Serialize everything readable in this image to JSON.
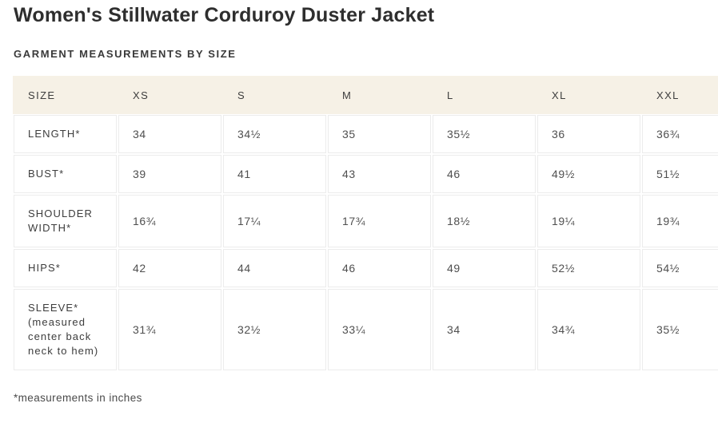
{
  "page": {
    "title": "Women's Stillwater Corduroy Duster Jacket",
    "section_heading": "GARMENT MEASUREMENTS BY SIZE",
    "footnote": "*measurements in inches"
  },
  "table": {
    "columns": [
      "SIZE",
      "XS",
      "S",
      "M",
      "L",
      "XL",
      "XXL"
    ],
    "rows": [
      {
        "label": "LENGTH*",
        "values": [
          "34",
          "34½",
          "35",
          "35½",
          "36",
          "36¾"
        ]
      },
      {
        "label": "BUST*",
        "values": [
          "39",
          "41",
          "43",
          "46",
          "49½",
          "51½"
        ]
      },
      {
        "label": "SHOULDER WIDTH*",
        "values": [
          "16¾",
          "17¼",
          "17¾",
          "18½",
          "19¼",
          "19¾"
        ]
      },
      {
        "label": "HIPS*",
        "values": [
          "42",
          "44",
          "46",
          "49",
          "52½",
          "54½"
        ]
      },
      {
        "label": "SLEEVE* (measured center back neck to hem)",
        "values": [
          "31¾",
          "32½",
          "33¼",
          "34",
          "34¾",
          "35½"
        ]
      }
    ]
  },
  "colors": {
    "header_background": "#f6f1e6",
    "cell_border": "#ececec",
    "text_primary": "#2e2e2e",
    "text_secondary": "#4f4f4f",
    "page_background": "#ffffff"
  }
}
